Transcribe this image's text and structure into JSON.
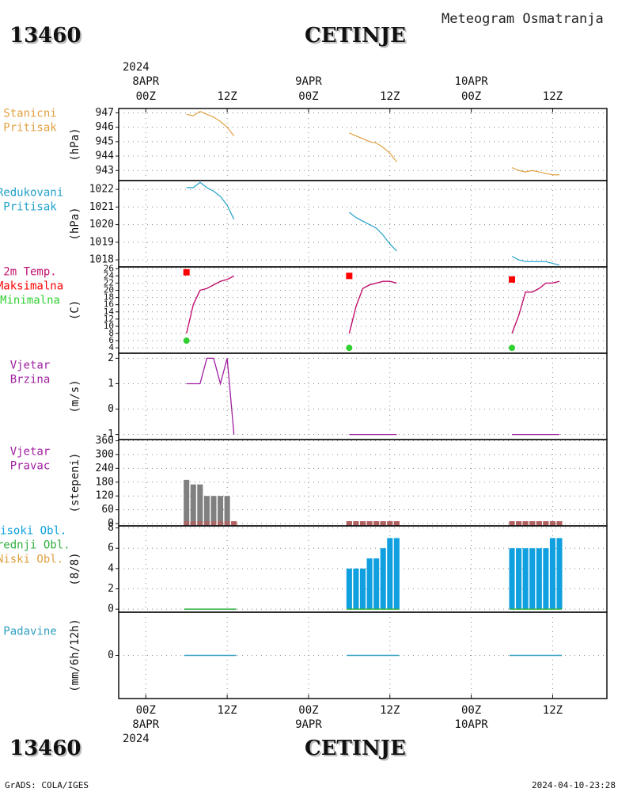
{
  "header": {
    "station_id": "13460",
    "station_name": "CETINJE",
    "subtitle": "Meteogram Osmatranja",
    "year": "2024"
  },
  "footer": {
    "station_id": "13460",
    "station_name": "CETINJE",
    "credit": "GrADS: COLA/IGES",
    "timestamp": "2024-04-10-23:28"
  },
  "time_axis": {
    "hour_labels": [
      "00Z",
      "12Z",
      "00Z",
      "12Z",
      "00Z",
      "12Z"
    ],
    "hour_values": [
      0,
      12,
      24,
      36,
      48,
      60
    ],
    "top_date_labels": [
      "8APR",
      "9APR",
      "10APR"
    ],
    "bottom_date_labels": [
      "8APR",
      "9APR",
      "10APR"
    ],
    "date_values": [
      0,
      24,
      48
    ],
    "range": [
      -4,
      68
    ]
  },
  "colors": {
    "pressure": "#e0a040",
    "reduced_pressure": "#20a0c8",
    "temperature": "#c01070",
    "max_marker": "#ff0000",
    "min_marker": "#30d030",
    "wind": "#a020a0",
    "wind_dir_bar": "#808080",
    "wind_dir_low": "#b06060",
    "cloud_high": "#10a0e0",
    "cloud_mid": "#30b040",
    "cloud_low": "#e0a040",
    "precip": "#30a0c0"
  },
  "chart_data": [
    {
      "type": "line",
      "panel": "station_pressure",
      "labels": [
        "Stanicni",
        "Pritisak"
      ],
      "unit": "(hPa)",
      "ylim": [
        942.3,
        947.3
      ],
      "yticks": [
        943,
        944,
        945,
        946,
        947
      ],
      "segments": [
        {
          "x": [
            6,
            7,
            8,
            9,
            10,
            11,
            12,
            13
          ],
          "y": [
            946.9,
            946.8,
            947.1,
            946.9,
            946.7,
            946.4,
            946.0,
            945.4
          ]
        },
        {
          "x": [
            30,
            31,
            32,
            33,
            34,
            35,
            36,
            37
          ],
          "y": [
            945.6,
            945.4,
            945.2,
            945.0,
            944.9,
            944.6,
            944.2,
            943.6
          ]
        },
        {
          "x": [
            54,
            55,
            56,
            57,
            58,
            59,
            60,
            61
          ],
          "y": [
            943.2,
            943.0,
            942.9,
            943.0,
            942.9,
            942.8,
            942.7,
            942.7
          ]
        }
      ]
    },
    {
      "type": "line",
      "panel": "reduced_pressure",
      "labels": [
        "Redukovani",
        "Pritisak"
      ],
      "unit": "(hPa)",
      "ylim": [
        1017.6,
        1022.5
      ],
      "yticks": [
        1018,
        1019,
        1020,
        1021,
        1022
      ],
      "segments": [
        {
          "x": [
            6,
            7,
            8,
            9,
            10,
            11,
            12,
            13
          ],
          "y": [
            1022.1,
            1022.1,
            1022.4,
            1022.1,
            1021.9,
            1021.6,
            1021.1,
            1020.3
          ]
        },
        {
          "x": [
            30,
            31,
            32,
            33,
            34,
            35,
            36,
            37
          ],
          "y": [
            1020.7,
            1020.4,
            1020.2,
            1020.0,
            1019.8,
            1019.4,
            1018.9,
            1018.5
          ]
        },
        {
          "x": [
            54,
            55,
            56,
            57,
            58,
            59,
            60,
            61
          ],
          "y": [
            1018.2,
            1018.0,
            1017.9,
            1017.9,
            1017.9,
            1017.9,
            1017.8,
            1017.7
          ]
        }
      ]
    },
    {
      "type": "line",
      "panel": "temperature",
      "labels": [
        "2m Temp.",
        "Maksimalna",
        "Minimalna"
      ],
      "unit": "(C)",
      "ylim": [
        2.5,
        26.5
      ],
      "yticks": [
        4,
        6,
        8,
        10,
        12,
        14,
        16,
        18,
        20,
        22,
        24,
        26
      ],
      "segments": [
        {
          "x": [
            6,
            7,
            8,
            9,
            10,
            11,
            12,
            13
          ],
          "y": [
            8,
            16,
            20,
            20.5,
            21.5,
            22.5,
            23,
            24
          ]
        },
        {
          "x": [
            30,
            31,
            32,
            33,
            34,
            35,
            36,
            37
          ],
          "y": [
            8,
            15.5,
            20.5,
            21.5,
            22,
            22.5,
            22.5,
            22
          ]
        },
        {
          "x": [
            54,
            55,
            56,
            57,
            58,
            59,
            60,
            61
          ],
          "y": [
            8,
            13,
            19.5,
            19.5,
            20.5,
            22,
            22,
            22.5
          ]
        }
      ],
      "maxima": {
        "x": [
          6,
          30,
          54
        ],
        "y": [
          25,
          24,
          23
        ]
      },
      "minima": {
        "x": [
          6,
          30,
          54
        ],
        "y": [
          6,
          4,
          4
        ]
      }
    },
    {
      "type": "line",
      "panel": "wind_speed",
      "labels": [
        "Vjetar",
        "Brzina"
      ],
      "unit": "(m/s)",
      "ylim": [
        -1.2,
        2.2
      ],
      "yticks": [
        -1,
        0,
        1,
        2
      ],
      "segments": [
        {
          "x": [
            6,
            7,
            8,
            9,
            10,
            11,
            12,
            13
          ],
          "y": [
            1,
            1,
            1,
            2,
            2,
            1,
            2,
            -1
          ]
        },
        {
          "x": [
            30,
            31,
            32,
            33,
            34,
            35,
            36,
            37
          ],
          "y": [
            -1,
            -1,
            -1,
            -1,
            -1,
            -1,
            -1,
            -1
          ]
        },
        {
          "x": [
            54,
            55,
            56,
            57,
            58,
            59,
            60,
            61
          ],
          "y": [
            -1,
            -1,
            -1,
            -1,
            -1,
            -1,
            -1,
            -1
          ]
        }
      ]
    },
    {
      "type": "bar",
      "panel": "wind_direction",
      "labels": [
        "Vjetar",
        "Pravac"
      ],
      "unit": "(stepeni)",
      "ylim": [
        -10,
        365
      ],
      "yticks": [
        0,
        60,
        120,
        180,
        240,
        300,
        360
      ],
      "x": [
        6,
        7,
        8,
        9,
        10,
        11,
        12,
        13,
        30,
        31,
        32,
        33,
        34,
        35,
        36,
        37,
        54,
        55,
        56,
        57,
        58,
        59,
        60,
        61
      ],
      "values": [
        190,
        170,
        170,
        120,
        120,
        120,
        120,
        10,
        10,
        10,
        10,
        10,
        10,
        10,
        10,
        10,
        10,
        10,
        10,
        10,
        10,
        10,
        10,
        10
      ]
    },
    {
      "type": "bar",
      "panel": "cloud_cover",
      "labels": [
        "Visoki Obl.",
        "Srednji Obl.",
        "Niski Obl."
      ],
      "unit": "(8/8)",
      "ylim": [
        -0.3,
        8.2
      ],
      "yticks": [
        0,
        2,
        4,
        6,
        8
      ],
      "x": [
        6,
        7,
        8,
        9,
        10,
        11,
        12,
        13,
        30,
        31,
        32,
        33,
        34,
        35,
        36,
        37,
        54,
        55,
        56,
        57,
        58,
        59,
        60,
        61
      ],
      "values": [
        0,
        0,
        0,
        0,
        0,
        0,
        0,
        0,
        4,
        4,
        4,
        5,
        5,
        6,
        7,
        7,
        6,
        6,
        6,
        6,
        6,
        6,
        7,
        7
      ]
    },
    {
      "type": "line",
      "panel": "precipitation",
      "labels": [
        "Padavine"
      ],
      "unit": "(mm/6h/12h)",
      "ylim": [
        -5,
        5
      ],
      "yticks": [
        0
      ],
      "segments": [
        {
          "x": [
            6,
            13
          ],
          "y": [
            0,
            0
          ]
        },
        {
          "x": [
            30,
            37
          ],
          "y": [
            0,
            0
          ]
        },
        {
          "x": [
            54,
            61
          ],
          "y": [
            0,
            0
          ]
        }
      ]
    }
  ]
}
